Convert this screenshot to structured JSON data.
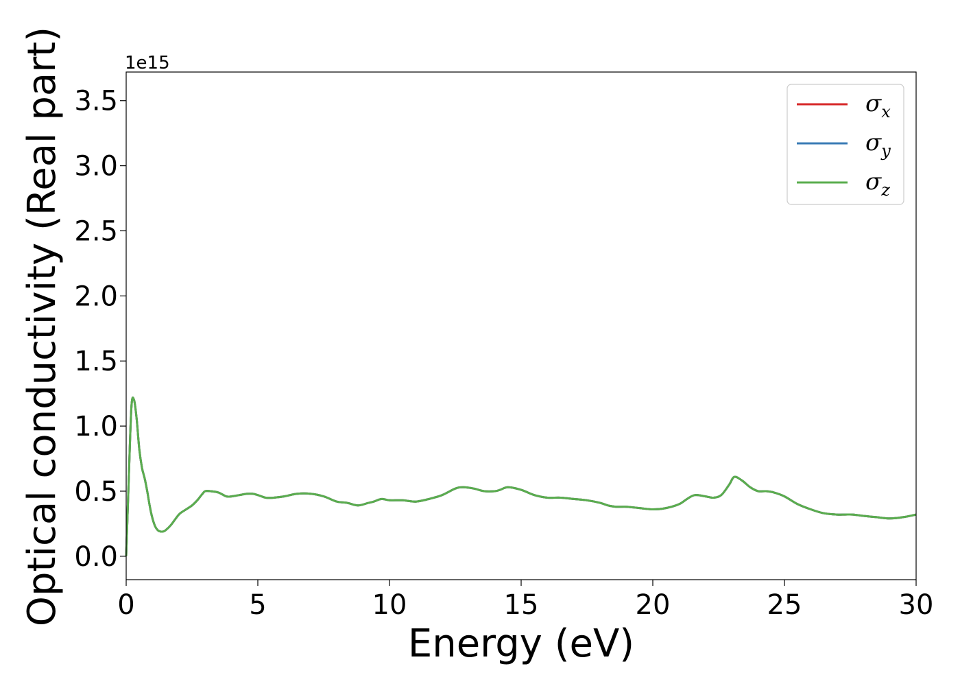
{
  "chart_data": {
    "type": "line",
    "xlabel": "Energy (eV)",
    "ylabel": "Optical conductivity (Real part)",
    "y_offset_label": "1e15",
    "xlim": [
      0,
      30
    ],
    "ylim": [
      -0.18,
      3.72
    ],
    "x_ticks": [
      0,
      5,
      10,
      15,
      20,
      25,
      30
    ],
    "x_tick_labels": [
      "0",
      "5",
      "10",
      "15",
      "20",
      "25",
      "30"
    ],
    "y_ticks": [
      0.0,
      0.5,
      1.0,
      1.5,
      2.0,
      2.5,
      3.0,
      3.5
    ],
    "y_tick_labels": [
      "0.0",
      "0.5",
      "1.0",
      "1.5",
      "2.0",
      "2.5",
      "3.0",
      "3.5"
    ],
    "grid": false,
    "legend_position": "top-right",
    "series": [
      {
        "name": "σ",
        "subscript": "x",
        "color": "#d62728"
      },
      {
        "name": "σ",
        "subscript": "y",
        "color": "#3a7bb5"
      },
      {
        "name": "σ",
        "subscript": "z",
        "color": "#5aad4e"
      }
    ],
    "curve": {
      "x": [
        0,
        0.1,
        0.2,
        0.3,
        0.4,
        0.5,
        0.6,
        0.7,
        0.8,
        0.9,
        1.0,
        1.1,
        1.2,
        1.3,
        1.4,
        1.5,
        1.7,
        2.0,
        2.2,
        2.5,
        2.7,
        2.9,
        3.0,
        3.2,
        3.5,
        3.8,
        4.0,
        4.3,
        4.6,
        4.8,
        5.0,
        5.3,
        5.6,
        6.0,
        6.5,
        7.0,
        7.5,
        8.0,
        8.4,
        8.8,
        9.2,
        9.4,
        9.7,
        10.0,
        10.5,
        11.0,
        11.5,
        12.0,
        12.5,
        12.8,
        13.2,
        13.6,
        14.0,
        14.2,
        14.5,
        15.0,
        15.5,
        16.0,
        16.5,
        17.0,
        17.5,
        18.0,
        18.3,
        18.6,
        19.0,
        19.5,
        20.0,
        20.5,
        21.0,
        21.3,
        21.6,
        22.0,
        22.3,
        22.6,
        22.9,
        23.1,
        23.4,
        23.7,
        24.0,
        24.3,
        24.6,
        25.0,
        25.5,
        26.0,
        26.5,
        27.0,
        27.3,
        27.6,
        28.0,
        28.5,
        29.0,
        29.5,
        30.0
      ],
      "y": [
        0.0,
        0.6,
        1.15,
        1.2,
        1.05,
        0.82,
        0.68,
        0.6,
        0.5,
        0.38,
        0.29,
        0.23,
        0.2,
        0.19,
        0.19,
        0.2,
        0.24,
        0.32,
        0.35,
        0.39,
        0.43,
        0.48,
        0.5,
        0.5,
        0.49,
        0.46,
        0.46,
        0.47,
        0.48,
        0.48,
        0.47,
        0.45,
        0.45,
        0.46,
        0.48,
        0.48,
        0.46,
        0.42,
        0.41,
        0.39,
        0.41,
        0.42,
        0.44,
        0.43,
        0.43,
        0.42,
        0.44,
        0.47,
        0.52,
        0.53,
        0.52,
        0.5,
        0.5,
        0.51,
        0.53,
        0.51,
        0.47,
        0.45,
        0.45,
        0.44,
        0.43,
        0.41,
        0.39,
        0.38,
        0.38,
        0.37,
        0.36,
        0.37,
        0.4,
        0.44,
        0.47,
        0.46,
        0.45,
        0.47,
        0.55,
        0.61,
        0.58,
        0.53,
        0.5,
        0.5,
        0.49,
        0.46,
        0.4,
        0.36,
        0.33,
        0.32,
        0.32,
        0.32,
        0.31,
        0.3,
        0.29,
        0.3,
        0.32
      ]
    }
  }
}
